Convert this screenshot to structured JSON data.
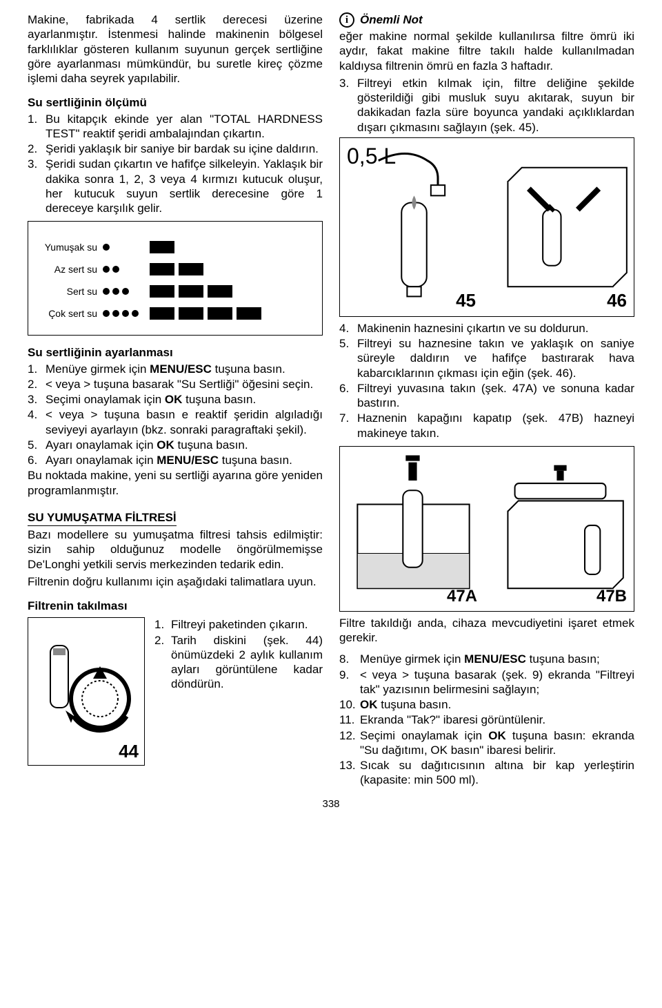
{
  "left": {
    "intro": "Makine, fabrikada 4 sertlik derecesi üzerine ayarlanmıştır. İstenmesi halinde makinenin bölgesel farklılıklar gösteren kullanım suyunun gerçek sertliğine göre ayarlanması mümkündür, bu suretle kireç çözme işlemi daha seyrek yapılabilir.",
    "meas_title": "Su sertliğinin ölçümü",
    "meas": [
      "Bu kitapçık ekinde yer alan \"TOTAL HARDNESS TEST\" reaktif şeridi ambalajından çıkartın.",
      "Şeridi yaklaşık bir saniye bir bardak su içine daldırın.",
      "Şeridi sudan çıkartın ve hafifçe silkeleyin. Yaklaşık bir dakika sonra 1, 2, 3 veya 4 kırmızı kutucuk oluşur, her kutucuk suyun sertlik derecesine göre 1 dereceye karşılık gelir."
    ],
    "hardness": {
      "rows": [
        {
          "label": "Yumuşak su",
          "dots": 1,
          "bars": [
            1,
            0,
            0,
            0
          ]
        },
        {
          "label": "Az sert su",
          "dots": 2,
          "bars": [
            1,
            1,
            0,
            0
          ]
        },
        {
          "label": "Sert su",
          "dots": 3,
          "bars": [
            1,
            1,
            1,
            0
          ]
        },
        {
          "label": "Çok sert su",
          "dots": 4,
          "bars": [
            1,
            1,
            1,
            1
          ]
        }
      ]
    },
    "set_title": "Su sertliğinin ayarlanması",
    "set": [
      {
        "t": "Menüye girmek için ",
        "b": "MENU/ESC",
        "a": " tuşuna basın."
      },
      {
        "t": "< veya > tuşuna basarak \"Su Sertliği\" öğesini seçin."
      },
      {
        "t": "Seçimi onaylamak için ",
        "b": "OK",
        "a": " tuşuna basın."
      },
      {
        "t": "< veya > tuşuna basın e reaktif şeridin algıladığı seviyeyi ayarlayın (bkz. sonraki paragraftaki şekil)."
      },
      {
        "t": "Ayarı onaylamak için ",
        "b": "OK",
        "a": " tuşuna basın."
      },
      {
        "t": "Ayarı onaylamak için ",
        "b": "MENU/ESC",
        "a": " tuşuna basın."
      }
    ],
    "set_after": "Bu noktada makine, yeni su sertliği ayarına göre yeniden programlanmıştır.",
    "filter_hdr": "SU YUMUŞATMA FİLTRESİ",
    "filter_p": "Bazı modellere su yumuşatma filtresi tahsis edilmiştir: sizin sahip olduğunuz modelle öngörülmemişse De'Longhi yetkili servis merkezinden tedarik edin.",
    "filter_p2": "Filtrenin doğru kullanımı için aşağıdaki talimatlara uyun.",
    "install_title": "Filtrenin takılması",
    "fig44": {
      "num": "44",
      "steps": [
        "Filtreyi paketinden çıkarın.",
        "Tarih diskini (şek. 44) önümüzdeki 2 aylık kullanım ayları görüntülene kadar döndürün."
      ]
    }
  },
  "right": {
    "note_label": "Önemli Not",
    "note_p": "eğer makine normal şekilde kullanılırsa filtre ömrü iki aydır, fakat makine filtre takılı halde kullanılmadan kaldıysa filtrenin ömrü en fazla 3 haftadır.",
    "step3": "Filtreyi etkin kılmak için, filtre deliğine şekilde gösterildiği gibi musluk suyu akıtarak, suyun bir dakikadan fazla süre boyunca yandaki açıklıklardan dışarı çıkmasını sağlayın (şek. 45).",
    "fig4546": {
      "vol": "0,5 L",
      "n45": "45",
      "n46": "46"
    },
    "mid": [
      "Makinenin haznesini çıkartın ve su doldurun.",
      "Filtreyi su haznesine takın ve yaklaşık on saniye süreyle daldırın ve hafifçe bastırarak hava kabarcıklarının çıkması için eğin (şek. 46).",
      "Filtreyi yuvasına takın (şek. 47A) ve sonuna kadar bastırın.",
      "Haznenin kapağını kapatıp (şek. 47B) hazneyi makineye takın."
    ],
    "fig47": {
      "a": "47A",
      "b": "47B"
    },
    "after47": "Filtre takıldığı anda, cihaza mevcudiyetini işaret etmek gerekir.",
    "tail": [
      {
        "n": "8.",
        "t": "Menüye girmek için ",
        "b": "MENU/ESC",
        "a": " tuşuna basın;"
      },
      {
        "n": "9.",
        "t": "< veya > tuşuna basarak (şek. 9) ekranda \"Filtreyi tak\" yazısının belirmesini sağlayın;"
      },
      {
        "n": "10.",
        "b": "OK",
        "a": " tuşuna basın."
      },
      {
        "n": "11.",
        "t": "Ekranda \"Tak?\" ibaresi görüntülenir."
      },
      {
        "n": "12.",
        "t": "Seçimi onaylamak için ",
        "b": "OK",
        "a": " tuşuna basın: ekranda \"Su dağıtımı, OK basın\" ibaresi belirir."
      },
      {
        "n": "13.",
        "t": "Sıcak su dağıtıcısının altına bir kap yerleştirin (kapasite: min 500 ml)."
      }
    ]
  },
  "pagenum": "338"
}
